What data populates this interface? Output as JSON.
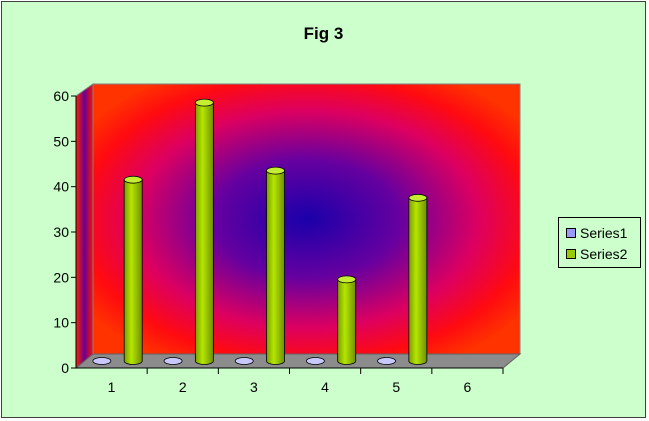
{
  "chart_data": {
    "type": "bar",
    "title": "Fig 3",
    "categories": [
      "1",
      "2",
      "3",
      "4",
      "5",
      "6"
    ],
    "series": [
      {
        "name": "Series1",
        "values": [
          0,
          0,
          0,
          0,
          0,
          null
        ],
        "color": "#9999ff"
      },
      {
        "name": "Series2",
        "values": [
          40,
          57,
          42,
          18,
          36,
          null
        ],
        "color": "#99cc00"
      }
    ],
    "y_ticks": [
      "0",
      "10",
      "20",
      "30",
      "40",
      "50",
      "60"
    ],
    "ylim": [
      0,
      60
    ],
    "xlabel": "",
    "ylabel": "",
    "grid": false,
    "legend_position": "right",
    "colors": {
      "background": "#ccffcc",
      "wall_edge": "#ff0000",
      "wall_center": "#2200aa",
      "floor": "#808080"
    }
  }
}
